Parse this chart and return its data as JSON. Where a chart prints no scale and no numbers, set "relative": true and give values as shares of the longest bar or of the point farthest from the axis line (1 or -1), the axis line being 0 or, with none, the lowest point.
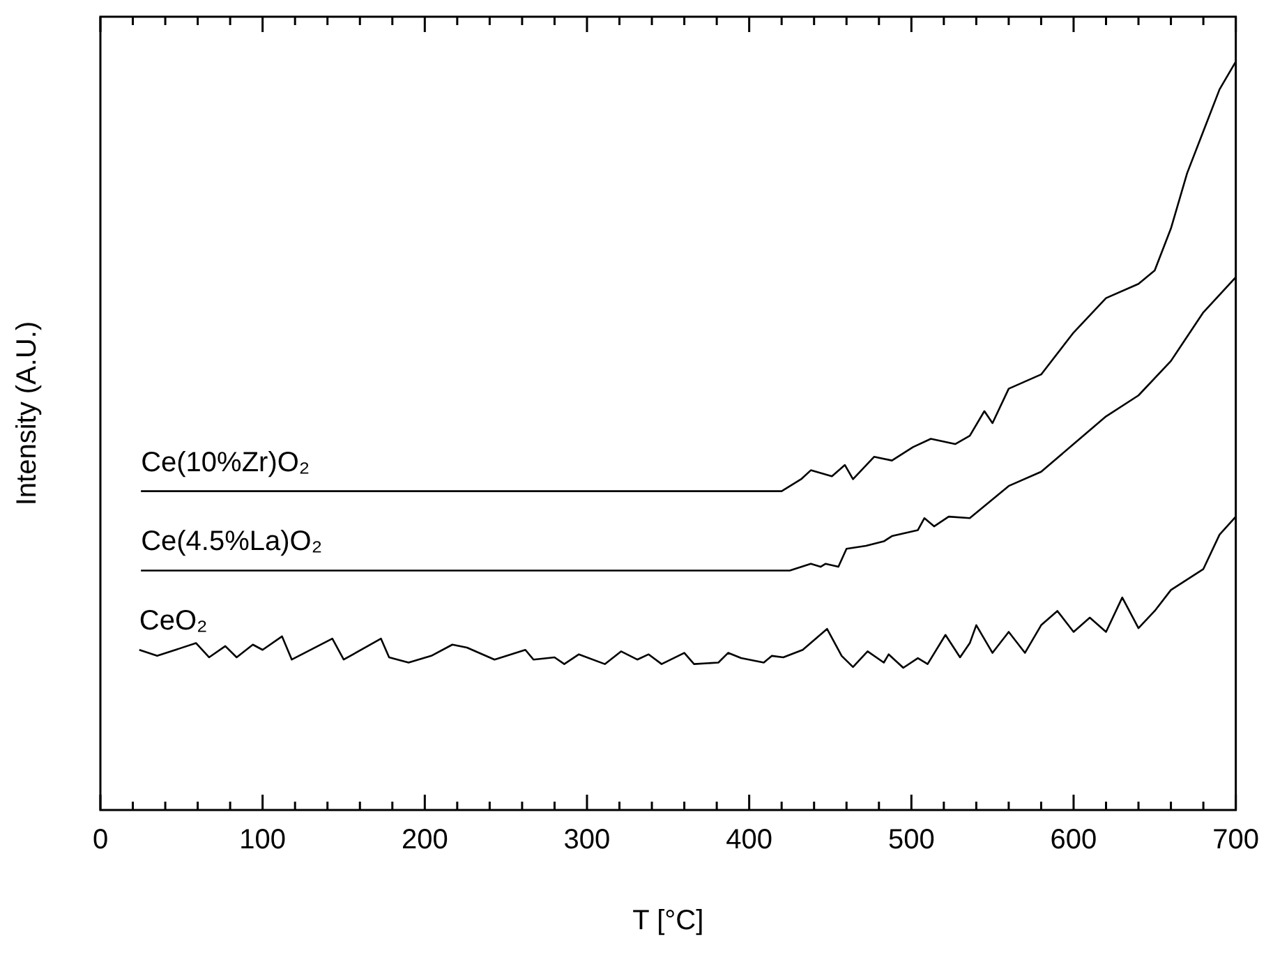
{
  "chart_data": {
    "type": "line",
    "xlabel": "T [°C]",
    "ylabel": "Intensity (A.U.)",
    "relative": true,
    "legend": false,
    "grid": false,
    "marker": "none",
    "line_style": "solid",
    "xlim": [
      0,
      700
    ],
    "xticks": [
      0,
      {
        "value": 20,
        "label": null
      },
      {
        "value": 40,
        "label": null
      },
      {
        "value": 60,
        "label": null
      },
      {
        "value": 80,
        "label": null
      },
      100,
      {
        "value": 120,
        "label": null
      },
      {
        "value": 140,
        "label": null
      },
      {
        "value": 160,
        "label": null
      },
      {
        "value": 180,
        "label": null
      },
      200,
      {
        "value": 220,
        "label": null
      },
      {
        "value": 240,
        "label": null
      },
      {
        "value": 260,
        "label": null
      },
      {
        "value": 280,
        "label": null
      },
      300,
      {
        "value": 320,
        "label": null
      },
      {
        "value": 340,
        "label": null
      },
      {
        "value": 360,
        "label": null
      },
      {
        "value": 380,
        "label": null
      },
      400,
      {
        "value": 420,
        "label": null
      },
      {
        "value": 440,
        "label": null
      },
      {
        "value": 460,
        "label": null
      },
      {
        "value": 480,
        "label": null
      },
      500,
      {
        "value": 520,
        "label": null
      },
      {
        "value": 540,
        "label": null
      },
      {
        "value": 560,
        "label": null
      },
      {
        "value": 580,
        "label": null
      },
      600,
      {
        "value": 620,
        "label": null
      },
      {
        "value": 640,
        "label": null
      },
      {
        "value": 660,
        "label": null
      },
      {
        "value": 680,
        "label": null
      },
      700
    ],
    "series": [
      {
        "name": "Ce(10%Zr)O₂",
        "color": "#000000",
        "x": [
          25,
          420,
          432,
          438,
          451,
          459,
          464,
          477,
          488,
          501,
          512,
          527,
          536,
          545,
          550,
          560,
          580,
          600,
          620,
          640,
          650,
          660,
          670,
          680,
          690,
          700
        ],
        "values": [
          0.426,
          0.426,
          0.442,
          0.454,
          0.446,
          0.461,
          0.442,
          0.472,
          0.467,
          0.485,
          0.496,
          0.489,
          0.5,
          0.533,
          0.517,
          0.563,
          0.582,
          0.638,
          0.684,
          0.703,
          0.721,
          0.777,
          0.851,
          0.907,
          0.963,
          1
        ]
      },
      {
        "name": "Ce(4.5%La)O₂",
        "color": "#000000",
        "x": [
          25,
          409,
          425,
          438,
          444,
          447,
          455,
          460,
          472,
          483,
          488,
          504,
          508,
          514,
          523,
          536,
          560,
          580,
          600,
          620,
          640,
          660,
          680,
          700
        ],
        "values": [
          0.32,
          0.32,
          0.32,
          0.329,
          0.325,
          0.329,
          0.325,
          0.349,
          0.353,
          0.359,
          0.366,
          0.374,
          0.39,
          0.379,
          0.392,
          0.39,
          0.433,
          0.452,
          0.489,
          0.526,
          0.554,
          0.6,
          0.665,
          0.712
        ]
      },
      {
        "name": "CeO₂",
        "color": "#000000",
        "x": [
          24,
          35,
          59,
          67,
          77,
          84,
          94,
          100,
          112,
          118,
          143,
          150,
          173,
          178,
          190,
          204,
          217,
          226,
          243,
          262,
          267,
          280,
          286,
          295,
          311,
          321,
          331,
          338,
          346,
          360,
          366,
          381,
          387,
          395,
          409,
          414,
          421,
          433,
          448,
          457,
          464,
          473,
          483,
          486,
          495,
          504,
          510,
          521,
          530,
          536,
          540,
          550,
          560,
          570,
          580,
          590,
          600,
          610,
          620,
          630,
          640,
          650,
          660,
          680,
          690,
          700
        ],
        "values": [
          0.214,
          0.206,
          0.223,
          0.204,
          0.219,
          0.204,
          0.221,
          0.214,
          0.232,
          0.201,
          0.229,
          0.201,
          0.229,
          0.204,
          0.197,
          0.206,
          0.221,
          0.217,
          0.201,
          0.214,
          0.201,
          0.204,
          0.195,
          0.208,
          0.195,
          0.212,
          0.201,
          0.208,
          0.195,
          0.21,
          0.195,
          0.197,
          0.21,
          0.203,
          0.197,
          0.206,
          0.204,
          0.214,
          0.242,
          0.206,
          0.191,
          0.212,
          0.197,
          0.208,
          0.19,
          0.203,
          0.195,
          0.234,
          0.204,
          0.223,
          0.247,
          0.21,
          0.238,
          0.21,
          0.247,
          0.266,
          0.238,
          0.257,
          0.238,
          0.284,
          0.243,
          0.266,
          0.294,
          0.322,
          0.368,
          0.392
        ]
      }
    ]
  }
}
